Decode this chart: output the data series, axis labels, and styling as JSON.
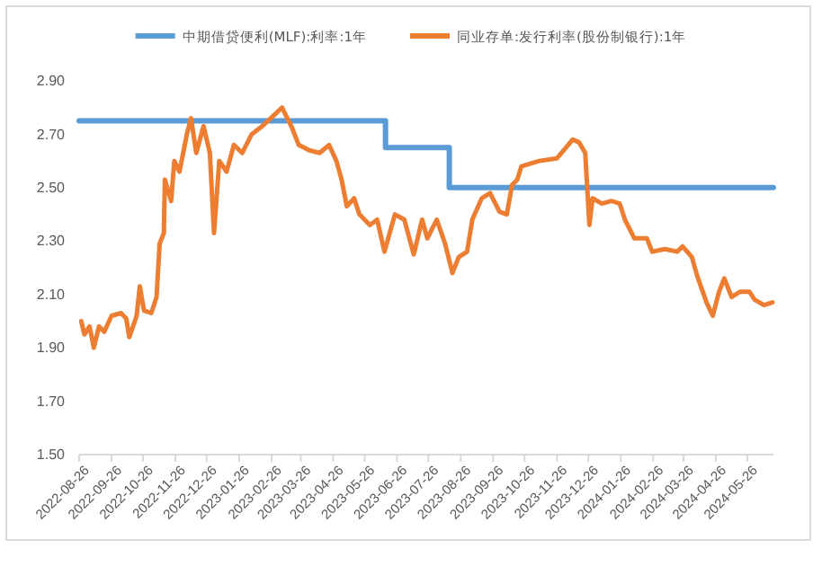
{
  "chart_data": {
    "type": "line",
    "legend": "top",
    "grid": false,
    "marker": "none",
    "line_style": "solid",
    "xlim": [
      "2022-08-26",
      "2024-06-20"
    ],
    "xticks": [
      "2022-08-26",
      "2022-09-26",
      "2022-10-26",
      "2022-11-26",
      "2022-12-26",
      "2023-01-26",
      "2023-02-26",
      "2023-03-26",
      "2023-04-26",
      "2023-05-26",
      "2023-06-26",
      "2023-07-26",
      "2023-08-26",
      "2023-09-26",
      "2023-10-26",
      "2023-11-26",
      "2023-12-26",
      "2024-01-26",
      "2024-02-26",
      "2024-03-26",
      "2024-04-26",
      "2024-05-26"
    ],
    "ylim": [
      1.5,
      2.9
    ],
    "yticks": [
      {
        "value": 1.5,
        "label": "1.50"
      },
      {
        "value": 1.7,
        "label": "1.70"
      },
      {
        "value": 1.9,
        "label": "1.90"
      },
      {
        "value": 2.1,
        "label": "2.10"
      },
      {
        "value": 2.3,
        "label": "2.30"
      },
      {
        "value": 2.5,
        "label": "2.50"
      },
      {
        "value": 2.7,
        "label": "2.70"
      },
      {
        "value": 2.9,
        "label": "2.90"
      }
    ],
    "series": [
      {
        "name": "中期借贷便利(MLF):利率:1年",
        "type": "step",
        "color": "#5b9bd5",
        "x": [
          "2022-08-26",
          "2023-06-15",
          "2023-08-15",
          "2024-06-20"
        ],
        "values": [
          2.75,
          2.65,
          2.5,
          2.5
        ]
      },
      {
        "name": "同业存单:发行利率(股份制银行):1年",
        "color": "#ed7d31",
        "x": [
          "2022-08-28",
          "2022-08-31",
          "2022-09-05",
          "2022-09-09",
          "2022-09-14",
          "2022-09-19",
          "2022-09-26",
          "2022-10-05",
          "2022-10-10",
          "2022-10-13",
          "2022-10-20",
          "2022-10-23",
          "2022-10-27",
          "2022-11-03",
          "2022-11-08",
          "2022-11-11",
          "2022-11-15",
          "2022-11-16",
          "2022-11-22",
          "2022-11-25",
          "2022-11-30",
          "2022-12-07",
          "2022-12-11",
          "2022-12-16",
          "2022-12-23",
          "2022-12-29",
          "2023-01-02",
          "2023-01-07",
          "2023-01-14",
          "2023-01-21",
          "2023-01-29",
          "2023-02-07",
          "2023-02-17",
          "2023-02-28",
          "2023-03-08",
          "2023-03-17",
          "2023-03-24",
          "2023-04-03",
          "2023-04-13",
          "2023-04-22",
          "2023-04-29",
          "2023-05-04",
          "2023-05-09",
          "2023-05-16",
          "2023-05-21",
          "2023-05-31",
          "2023-06-07",
          "2023-06-14",
          "2023-06-24",
          "2023-07-03",
          "2023-07-12",
          "2023-07-20",
          "2023-07-25",
          "2023-08-03",
          "2023-08-11",
          "2023-08-18",
          "2023-08-24",
          "2023-09-01",
          "2023-09-06",
          "2023-09-15",
          "2023-09-23",
          "2023-10-02",
          "2023-10-09",
          "2023-10-14",
          "2023-10-19",
          "2023-10-23",
          "2023-11-09",
          "2023-11-26",
          "2023-12-11",
          "2023-12-17",
          "2023-12-23",
          "2023-12-27",
          "2023-12-30",
          "2024-01-08",
          "2024-01-17",
          "2024-01-25",
          "2024-01-30",
          "2024-02-08",
          "2024-02-20",
          "2024-02-25",
          "2024-03-08",
          "2024-03-20",
          "2024-03-25",
          "2024-04-03",
          "2024-04-08",
          "2024-04-17",
          "2024-04-23",
          "2024-04-29",
          "2024-05-04",
          "2024-05-11",
          "2024-05-19",
          "2024-05-28",
          "2024-06-02",
          "2024-06-11",
          "2024-06-19"
        ],
        "values": [
          2.0,
          1.95,
          1.98,
          1.9,
          1.98,
          1.96,
          2.02,
          2.03,
          2.01,
          1.94,
          2.02,
          2.13,
          2.04,
          2.03,
          2.09,
          2.29,
          2.33,
          2.53,
          2.45,
          2.6,
          2.56,
          2.7,
          2.76,
          2.63,
          2.73,
          2.63,
          2.33,
          2.6,
          2.56,
          2.66,
          2.63,
          2.7,
          2.73,
          2.77,
          2.8,
          2.73,
          2.66,
          2.64,
          2.63,
          2.66,
          2.6,
          2.53,
          2.43,
          2.46,
          2.4,
          2.36,
          2.38,
          2.26,
          2.4,
          2.38,
          2.25,
          2.38,
          2.31,
          2.38,
          2.29,
          2.18,
          2.24,
          2.26,
          2.38,
          2.46,
          2.48,
          2.41,
          2.4,
          2.51,
          2.53,
          2.58,
          2.6,
          2.61,
          2.68,
          2.67,
          2.63,
          2.36,
          2.46,
          2.44,
          2.45,
          2.44,
          2.38,
          2.31,
          2.31,
          2.26,
          2.27,
          2.26,
          2.28,
          2.24,
          2.17,
          2.07,
          2.02,
          2.11,
          2.16,
          2.09,
          2.11,
          2.11,
          2.08,
          2.06,
          2.07
        ]
      }
    ]
  }
}
